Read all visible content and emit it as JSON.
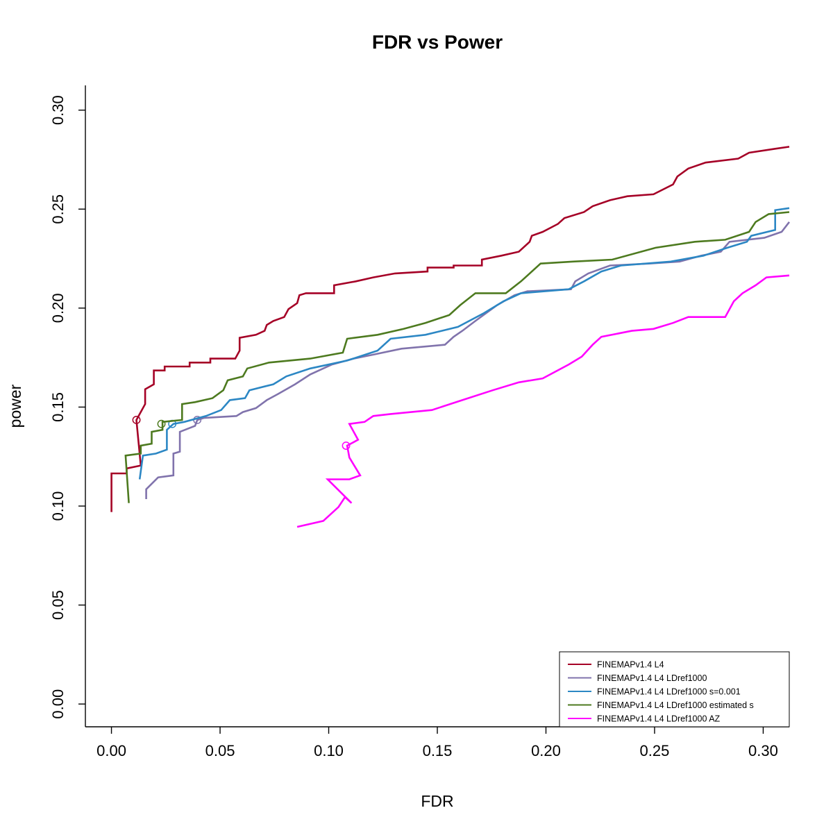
{
  "chart_data": {
    "type": "line",
    "title": "FDR vs Power",
    "xlabel": "FDR",
    "ylabel": "power",
    "xlim": [
      -0.012,
      0.312
    ],
    "ylim": [
      -0.0115,
      0.3125
    ],
    "x_ticks": [
      0.0,
      0.05,
      0.1,
      0.15,
      0.2,
      0.25,
      0.3
    ],
    "x_tick_labels": [
      "0.00",
      "0.05",
      "0.10",
      "0.15",
      "0.20",
      "0.25",
      "0.30"
    ],
    "y_ticks": [
      0.0,
      0.05,
      0.1,
      0.15,
      0.2,
      0.25,
      0.3
    ],
    "y_tick_labels": [
      "0.00",
      "0.05",
      "0.10",
      "0.15",
      "0.20",
      "0.25",
      "0.30"
    ],
    "grid": false,
    "legend_position": "bottom-right",
    "series": [
      {
        "name": "FINEMAPv1.4 L4",
        "color": "#a50026",
        "marker": {
          "x": 0.0115,
          "y": 0.1435
        },
        "points": [
          [
            0.0,
            0.097
          ],
          [
            0.0,
            0.1165
          ],
          [
            0.007,
            0.1165
          ],
          [
            0.007,
            0.119
          ],
          [
            0.0135,
            0.1205
          ],
          [
            0.0115,
            0.1435
          ],
          [
            0.0155,
            0.1515
          ],
          [
            0.0155,
            0.159
          ],
          [
            0.0195,
            0.1615
          ],
          [
            0.0195,
            0.1685
          ],
          [
            0.0245,
            0.1685
          ],
          [
            0.0245,
            0.1705
          ],
          [
            0.036,
            0.1705
          ],
          [
            0.036,
            0.1725
          ],
          [
            0.0455,
            0.1725
          ],
          [
            0.0455,
            0.1745
          ],
          [
            0.057,
            0.1745
          ],
          [
            0.059,
            0.1785
          ],
          [
            0.059,
            0.185
          ],
          [
            0.0665,
            0.1865
          ],
          [
            0.0705,
            0.1885
          ],
          [
            0.0715,
            0.1915
          ],
          [
            0.0745,
            0.1935
          ],
          [
            0.0795,
            0.1955
          ],
          [
            0.0815,
            0.1995
          ],
          [
            0.0855,
            0.2025
          ],
          [
            0.0865,
            0.2065
          ],
          [
            0.0895,
            0.2075
          ],
          [
            0.1025,
            0.2075
          ],
          [
            0.1025,
            0.2115
          ],
          [
            0.1125,
            0.2135
          ],
          [
            0.1205,
            0.2155
          ],
          [
            0.1305,
            0.2175
          ],
          [
            0.1455,
            0.2185
          ],
          [
            0.1455,
            0.2205
          ],
          [
            0.1575,
            0.2205
          ],
          [
            0.1575,
            0.2215
          ],
          [
            0.1705,
            0.2215
          ],
          [
            0.1705,
            0.2245
          ],
          [
            0.1795,
            0.2265
          ],
          [
            0.1875,
            0.2285
          ],
          [
            0.1925,
            0.2335
          ],
          [
            0.1935,
            0.2365
          ],
          [
            0.1985,
            0.2385
          ],
          [
            0.2055,
            0.2425
          ],
          [
            0.2085,
            0.2455
          ],
          [
            0.2175,
            0.2485
          ],
          [
            0.2215,
            0.2515
          ],
          [
            0.2295,
            0.2545
          ],
          [
            0.2375,
            0.2565
          ],
          [
            0.2495,
            0.2575
          ],
          [
            0.2585,
            0.2625
          ],
          [
            0.2605,
            0.2665
          ],
          [
            0.2655,
            0.2705
          ],
          [
            0.2735,
            0.2735
          ],
          [
            0.2885,
            0.2755
          ],
          [
            0.2935,
            0.2785
          ],
          [
            0.3055,
            0.2805
          ],
          [
            0.312,
            0.2815
          ]
        ]
      },
      {
        "name": "FINEMAPv1.4 L4 LDref1000",
        "color": "#8073ac",
        "marker": {
          "x": 0.0395,
          "y": 0.1435
        },
        "points": [
          [
            0.016,
            0.1035
          ],
          [
            0.016,
            0.1085
          ],
          [
            0.0215,
            0.1145
          ],
          [
            0.0285,
            0.1155
          ],
          [
            0.0285,
            0.1265
          ],
          [
            0.0315,
            0.1275
          ],
          [
            0.0315,
            0.1375
          ],
          [
            0.0385,
            0.1405
          ],
          [
            0.0395,
            0.1435
          ],
          [
            0.0425,
            0.1445
          ],
          [
            0.0575,
            0.1455
          ],
          [
            0.0605,
            0.1475
          ],
          [
            0.0665,
            0.1495
          ],
          [
            0.0715,
            0.1535
          ],
          [
            0.0765,
            0.1565
          ],
          [
            0.0845,
            0.1615
          ],
          [
            0.0915,
            0.1665
          ],
          [
            0.1015,
            0.1715
          ],
          [
            0.1115,
            0.1745
          ],
          [
            0.1205,
            0.1765
          ],
          [
            0.1335,
            0.1795
          ],
          [
            0.1535,
            0.1815
          ],
          [
            0.1575,
            0.1855
          ],
          [
            0.1615,
            0.1885
          ],
          [
            0.1675,
            0.1935
          ],
          [
            0.1775,
            0.2015
          ],
          [
            0.1855,
            0.2065
          ],
          [
            0.1915,
            0.2085
          ],
          [
            0.2115,
            0.2095
          ],
          [
            0.2135,
            0.2135
          ],
          [
            0.2195,
            0.2175
          ],
          [
            0.2295,
            0.2215
          ],
          [
            0.2475,
            0.2225
          ],
          [
            0.2615,
            0.2235
          ],
          [
            0.2715,
            0.2265
          ],
          [
            0.2805,
            0.2285
          ],
          [
            0.2845,
            0.2335
          ],
          [
            0.3005,
            0.2355
          ],
          [
            0.3085,
            0.2385
          ],
          [
            0.312,
            0.2435
          ]
        ]
      },
      {
        "name": "FINEMAPv1.4 L4 LDref1000 s=0.001",
        "color": "#2c87c4",
        "marker": {
          "x": 0.028,
          "y": 0.1415
        },
        "points": [
          [
            0.013,
            0.1135
          ],
          [
            0.0145,
            0.1255
          ],
          [
            0.0205,
            0.1265
          ],
          [
            0.0255,
            0.1285
          ],
          [
            0.0255,
            0.1385
          ],
          [
            0.0285,
            0.1415
          ],
          [
            0.0335,
            0.1425
          ],
          [
            0.0435,
            0.1455
          ],
          [
            0.0505,
            0.1485
          ],
          [
            0.0545,
            0.1535
          ],
          [
            0.0615,
            0.1545
          ],
          [
            0.0635,
            0.1585
          ],
          [
            0.0745,
            0.1615
          ],
          [
            0.0805,
            0.1655
          ],
          [
            0.0915,
            0.1695
          ],
          [
            0.1085,
            0.1735
          ],
          [
            0.1225,
            0.1785
          ],
          [
            0.1285,
            0.1845
          ],
          [
            0.1445,
            0.1865
          ],
          [
            0.1595,
            0.1905
          ],
          [
            0.1715,
            0.1975
          ],
          [
            0.1805,
            0.2035
          ],
          [
            0.1885,
            0.2075
          ],
          [
            0.2105,
            0.2095
          ],
          [
            0.2175,
            0.2135
          ],
          [
            0.2255,
            0.2185
          ],
          [
            0.2345,
            0.2215
          ],
          [
            0.2575,
            0.2235
          ],
          [
            0.2725,
            0.2265
          ],
          [
            0.2835,
            0.2305
          ],
          [
            0.2925,
            0.2335
          ],
          [
            0.2945,
            0.2365
          ],
          [
            0.3055,
            0.2395
          ],
          [
            0.3055,
            0.2495
          ],
          [
            0.312,
            0.2505
          ]
        ]
      },
      {
        "name": "FINEMAPv1.4 L4 LDref1000 estimated s",
        "color": "#4d7a1f",
        "marker": {
          "x": 0.023,
          "y": 0.1415
        },
        "points": [
          [
            0.008,
            0.1015
          ],
          [
            0.0065,
            0.1255
          ],
          [
            0.0135,
            0.1265
          ],
          [
            0.0135,
            0.1305
          ],
          [
            0.0185,
            0.1315
          ],
          [
            0.0185,
            0.1375
          ],
          [
            0.0235,
            0.1385
          ],
          [
            0.0235,
            0.1425
          ],
          [
            0.0325,
            0.1435
          ],
          [
            0.0325,
            0.1515
          ],
          [
            0.0385,
            0.1525
          ],
          [
            0.0465,
            0.1545
          ],
          [
            0.0515,
            0.1585
          ],
          [
            0.0535,
            0.1635
          ],
          [
            0.0605,
            0.1655
          ],
          [
            0.0625,
            0.1695
          ],
          [
            0.0725,
            0.1725
          ],
          [
            0.0915,
            0.1745
          ],
          [
            0.1065,
            0.1775
          ],
          [
            0.1085,
            0.1845
          ],
          [
            0.1225,
            0.1865
          ],
          [
            0.1345,
            0.1895
          ],
          [
            0.1445,
            0.1925
          ],
          [
            0.1555,
            0.1965
          ],
          [
            0.1605,
            0.2015
          ],
          [
            0.1675,
            0.2075
          ],
          [
            0.1815,
            0.2075
          ],
          [
            0.1885,
            0.2135
          ],
          [
            0.1975,
            0.2225
          ],
          [
            0.2125,
            0.2235
          ],
          [
            0.2305,
            0.2245
          ],
          [
            0.2505,
            0.2305
          ],
          [
            0.2685,
            0.2335
          ],
          [
            0.2825,
            0.2345
          ],
          [
            0.2935,
            0.2385
          ],
          [
            0.2965,
            0.2435
          ],
          [
            0.3025,
            0.2475
          ],
          [
            0.312,
            0.2485
          ]
        ]
      },
      {
        "name": "FINEMAPv1.4 L4 LDref1000 AZ",
        "color": "#ff00ff",
        "marker": {
          "x": 0.108,
          "y": 0.1305
        },
        "points": [
          [
            0.0855,
            0.0895
          ],
          [
            0.0975,
            0.0925
          ],
          [
            0.1045,
            0.0995
          ],
          [
            0.1075,
            0.1045
          ],
          [
            0.1105,
            0.1015
          ],
          [
            0.0995,
            0.1135
          ],
          [
            0.1095,
            0.1135
          ],
          [
            0.1145,
            0.1155
          ],
          [
            0.1095,
            0.1245
          ],
          [
            0.1085,
            0.1305
          ],
          [
            0.1135,
            0.1335
          ],
          [
            0.1095,
            0.1415
          ],
          [
            0.1165,
            0.1425
          ],
          [
            0.1205,
            0.1455
          ],
          [
            0.1285,
            0.1465
          ],
          [
            0.1475,
            0.1485
          ],
          [
            0.1615,
            0.1535
          ],
          [
            0.1755,
            0.1585
          ],
          [
            0.1875,
            0.1625
          ],
          [
            0.1985,
            0.1645
          ],
          [
            0.2105,
            0.1715
          ],
          [
            0.2165,
            0.1755
          ],
          [
            0.2215,
            0.1815
          ],
          [
            0.2255,
            0.1855
          ],
          [
            0.2395,
            0.1885
          ],
          [
            0.2495,
            0.1895
          ],
          [
            0.2585,
            0.1925
          ],
          [
            0.2655,
            0.1955
          ],
          [
            0.2825,
            0.1955
          ],
          [
            0.2865,
            0.2035
          ],
          [
            0.2905,
            0.2075
          ],
          [
            0.2965,
            0.2115
          ],
          [
            0.3015,
            0.2155
          ],
          [
            0.312,
            0.2165
          ]
        ]
      }
    ]
  }
}
